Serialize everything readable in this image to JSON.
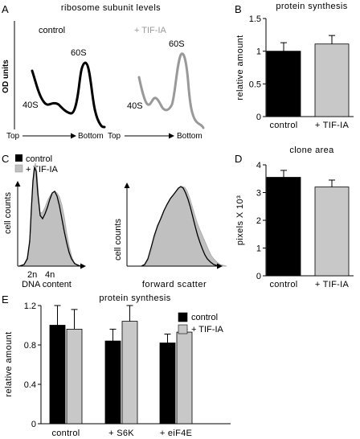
{
  "panels": {
    "A": {
      "letter": "A",
      "title": "ribosome subunit levels",
      "ylabel": "OD units",
      "label_control": "control",
      "label_tif": "+ TIF-IA",
      "peak_40s": "40S",
      "peak_60s": "60S",
      "axis_top": "Top",
      "axis_bottom": "Bottom"
    },
    "B": {
      "letter": "B"
    },
    "C": {
      "letter": "C",
      "legend_control": "control",
      "legend_tif": "+ TIF-IA",
      "ylabel_left": "cell counts",
      "xlabel_left": "DNA content",
      "tick_2n": "2n",
      "tick_4n": "4n",
      "ylabel_right": "cell counts",
      "xlabel_right": "forward scatter"
    },
    "D": {
      "letter": "D"
    },
    "E": {
      "letter": "E"
    }
  },
  "colors": {
    "control": "#000000",
    "tif": "#c8c8c8",
    "tif_profile": "#999999",
    "histogram_fill": "#c0c0c0"
  },
  "chart_data": [
    {
      "id": "B",
      "type": "bar",
      "title": "protein synthesis",
      "ylabel": "relative amount",
      "categories": [
        "control",
        "+ TIF-IA"
      ],
      "values": [
        1.0,
        1.11
      ],
      "errors": [
        0.13,
        0.13
      ],
      "ylim": [
        0,
        1.5
      ],
      "yticks": [
        0,
        0.5,
        1,
        1.5
      ],
      "ytick_labels": [
        "0",
        "0.5",
        "1",
        "1.5"
      ]
    },
    {
      "id": "D",
      "type": "bar",
      "title": "clone area",
      "ylabel": "pixels X 10³",
      "categories": [
        "control",
        "+ TIF-IA"
      ],
      "values": [
        3.55,
        3.2
      ],
      "errors": [
        0.25,
        0.25
      ],
      "ylim": [
        0,
        4
      ],
      "yticks": [
        0,
        1,
        2,
        3,
        4
      ],
      "ytick_labels": [
        "0",
        "1",
        "2",
        "3",
        "4"
      ]
    },
    {
      "id": "E",
      "type": "bar",
      "title": "protein synthesis",
      "ylabel": "relative amount",
      "categories": [
        "control",
        "+ S6K",
        "+ eiF4E"
      ],
      "series": [
        {
          "name": "control",
          "values": [
            1.0,
            0.84,
            0.82
          ],
          "errors": [
            0.2,
            0.12,
            0.09
          ]
        },
        {
          "name": "+ TIF-IA",
          "values": [
            0.96,
            1.04,
            0.93
          ],
          "errors": [
            0.2,
            0.16,
            0.03
          ]
        }
      ],
      "ylim": [
        0,
        1.2
      ],
      "yticks": [
        0,
        0.4,
        0.8,
        1.2
      ],
      "ytick_labels": [
        "0",
        "0.4",
        "0.8",
        "1.2"
      ]
    }
  ]
}
